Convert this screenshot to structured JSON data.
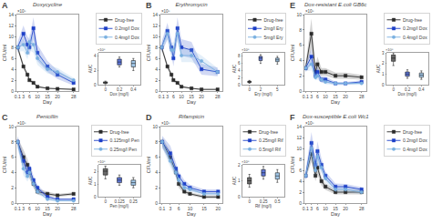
{
  "chart_data": [
    {
      "type": "line",
      "title": "Doxycycline",
      "annotations": [
        "A",
        "×10⁸"
      ],
      "xlabel": "Day",
      "ylabel": "CFU/ml",
      "x": [
        0.1,
        3,
        5,
        6,
        8,
        10,
        15,
        20,
        28
      ],
      "xlim": [
        -0.5,
        30.4
      ],
      "xticks": [
        0.1,
        3,
        6,
        10,
        15,
        20,
        28
      ],
      "ylim": [
        0,
        14
      ],
      "yticks": [
        0,
        2,
        4,
        6,
        8,
        10,
        12,
        14
      ],
      "grid": false,
      "legend": "upper right",
      "series": [
        {
          "name": "Drug-free",
          "color": "#2a2a2a",
          "marker": "square",
          "values": [
            8.0,
            4.5,
            3.0,
            2.0,
            1.5,
            0.8,
            0.5,
            0.4,
            0.3
          ],
          "error": [
            0.5,
            0.5,
            0.4,
            0.3,
            0.2,
            0.2,
            0.1,
            0.1,
            0.1
          ]
        },
        {
          "name": "0.2mg/l Dox",
          "color": "#1c3fc8",
          "marker": "square",
          "values": [
            8.0,
            10.5,
            8.5,
            8.0,
            11.5,
            7.0,
            4.5,
            3.0,
            1.5
          ],
          "error": [
            1.0,
            1.5,
            1.5,
            1.5,
            2.0,
            1.5,
            1.0,
            0.8,
            0.5
          ]
        },
        {
          "name": "0.4mg/l Dox",
          "color": "#7ab0e0",
          "marker": "circle",
          "values": [
            8.0,
            8.5,
            7.0,
            9.0,
            8.5,
            6.0,
            4.0,
            3.5,
            2.0
          ],
          "error": [
            0.8,
            1.2,
            1.2,
            1.5,
            1.5,
            1.2,
            0.8,
            0.7,
            0.4
          ]
        }
      ],
      "inset": {
        "type": "box",
        "xlabel": "Dox (mg/l)",
        "ylabel": "AUC",
        "annotations": [
          "×10⁸"
        ],
        "xlim": [
          -0.1,
          0.5
        ],
        "xticks": [
          0,
          0.2,
          0.4
        ],
        "ylim": [
          0,
          4.5
        ],
        "yticks": [
          0,
          2,
          4
        ],
        "grid": false,
        "boxes": [
          {
            "x": 0,
            "median": 0.3,
            "q1": 0.2,
            "q3": 0.4,
            "lower": 0.1,
            "upper": 0.5,
            "color": "#2a2a2a"
          },
          {
            "x": 0.2,
            "median": 3.2,
            "q1": 2.8,
            "q3": 3.6,
            "lower": 2.5,
            "upper": 3.9,
            "color": "#1c3fc8"
          },
          {
            "x": 0.4,
            "median": 3.0,
            "q1": 2.5,
            "q3": 3.4,
            "lower": 2.0,
            "upper": 3.7,
            "color": "#7ab0e0"
          }
        ]
      }
    },
    {
      "type": "line",
      "title": "Erythromycin",
      "annotations": [
        "B",
        "×10⁸"
      ],
      "xlabel": "Day",
      "ylabel": "CFU/ml",
      "x": [
        0.1,
        3,
        5,
        6,
        8,
        10,
        15,
        20,
        28
      ],
      "xlim": [
        -0.5,
        30.4
      ],
      "xticks": [
        0.1,
        3,
        6,
        10,
        15,
        20,
        28
      ],
      "ylim": [
        0,
        14
      ],
      "yticks": [
        0,
        2,
        4,
        6,
        8,
        10,
        12,
        14
      ],
      "grid": false,
      "legend": "upper right",
      "series": [
        {
          "name": "Drug-free",
          "color": "#2a2a2a",
          "marker": "square",
          "values": [
            8.0,
            4.5,
            3.0,
            2.0,
            1.5,
            0.8,
            0.5,
            0.3,
            0.3
          ],
          "error": [
            0.5,
            0.5,
            0.4,
            0.3,
            0.2,
            0.2,
            0.1,
            0.1,
            0.1
          ]
        },
        {
          "name": "2mg/l Ery",
          "color": "#1c3fc8",
          "marker": "square",
          "values": [
            8.0,
            11.0,
            8.0,
            6.0,
            11.5,
            8.0,
            7.5,
            4.0,
            3.5
          ],
          "error": [
            1.0,
            1.5,
            1.5,
            1.5,
            2.0,
            1.5,
            1.5,
            1.0,
            0.8
          ]
        },
        {
          "name": "5mg/l Ery",
          "color": "#7ab0e0",
          "marker": "circle",
          "values": [
            8.0,
            10.5,
            7.5,
            7.5,
            10.5,
            6.5,
            6.5,
            5.5,
            3.5
          ],
          "error": [
            0.8,
            1.2,
            1.2,
            1.5,
            1.5,
            1.2,
            1.2,
            1.0,
            0.7
          ]
        }
      ],
      "inset": {
        "type": "box",
        "xlabel": "Ery (mg/l)",
        "ylabel": "AUC",
        "annotations": [
          "×10⁸"
        ],
        "xlim": [
          -1.25,
          6.25
        ],
        "xticks": [
          0,
          2,
          5
        ],
        "ylim": [
          0,
          9
        ],
        "yticks": [
          0,
          2,
          4,
          6,
          8
        ],
        "grid": false,
        "boxes": [
          {
            "x": 0,
            "median": 0.8,
            "q1": 0.6,
            "q3": 1.0,
            "lower": 0.4,
            "upper": 1.2,
            "color": "#2a2a2a"
          },
          {
            "x": 2,
            "median": 7.5,
            "q1": 6.8,
            "q3": 8.0,
            "lower": 6.0,
            "upper": 8.5,
            "color": "#1c3fc8"
          },
          {
            "x": 5,
            "median": 7.0,
            "q1": 6.5,
            "q3": 7.5,
            "lower": 5.8,
            "upper": 8.0,
            "color": "#7ab0e0"
          }
        ]
      }
    },
    {
      "type": "line",
      "title": "Dox-resistant E.coli GB6c",
      "annotations": [
        "E",
        "×10⁸"
      ],
      "xlabel": "Day",
      "ylabel": "CFU/ml",
      "x": [
        0.1,
        3,
        5,
        6,
        8,
        10,
        15,
        20,
        28
      ],
      "xlim": [
        -0.5,
        30.4
      ],
      "xticks": [
        0.1,
        3,
        6,
        10,
        15,
        20,
        28
      ],
      "ylim": [
        0,
        10
      ],
      "yticks": [
        0,
        2,
        4,
        6,
        8,
        10
      ],
      "grid": false,
      "legend": "upper right",
      "series": [
        {
          "name": "Drug-free",
          "color": "#2a2a2a",
          "marker": "square",
          "values": [
            3.0,
            7.5,
            2.5,
            3.5,
            2.5,
            2.5,
            2.0,
            2.0,
            1.8
          ],
          "error": [
            0.5,
            2.0,
            0.8,
            1.0,
            0.5,
            0.5,
            0.4,
            0.4,
            0.3
          ]
        },
        {
          "name": "0.2mg/l Dox",
          "color": "#1c3fc8",
          "marker": "square",
          "values": [
            3.0,
            4.5,
            2.0,
            2.5,
            1.5,
            1.5,
            1.0,
            1.0,
            1.2
          ],
          "error": [
            0.5,
            1.0,
            0.5,
            0.7,
            0.4,
            0.4,
            0.2,
            0.2,
            0.2
          ]
        },
        {
          "name": "0.4mg/l Dox",
          "color": "#7ab0e0",
          "marker": "circle",
          "values": [
            3.0,
            3.5,
            1.8,
            2.0,
            1.5,
            1.2,
            1.0,
            1.0,
            1.0
          ],
          "error": [
            0.4,
            0.8,
            0.4,
            0.5,
            0.3,
            0.3,
            0.2,
            0.2,
            0.2
          ]
        }
      ],
      "inset": {
        "type": "box",
        "xlabel": "Dox (mg/l)",
        "ylabel": "AUC",
        "annotations": [
          "×10⁸"
        ],
        "xlim": [
          -0.1,
          0.5
        ],
        "xticks": [
          0,
          0.2,
          0.4
        ],
        "ylim": [
          0,
          3
        ],
        "yticks": [
          0,
          1,
          2,
          3
        ],
        "grid": false,
        "boxes": [
          {
            "x": 0,
            "median": 2.5,
            "q1": 2.2,
            "q3": 2.8,
            "lower": 1.8,
            "upper": 3.0,
            "color": "#2a2a2a"
          },
          {
            "x": 0.2,
            "median": 1.0,
            "q1": 0.8,
            "q3": 1.2,
            "lower": 0.6,
            "upper": 1.4,
            "color": "#1c3fc8"
          },
          {
            "x": 0.4,
            "median": 0.9,
            "q1": 0.7,
            "q3": 1.1,
            "lower": 0.5,
            "upper": 1.3,
            "color": "#7ab0e0"
          }
        ]
      }
    },
    {
      "type": "line",
      "title": "Penicillin",
      "annotations": [
        "C",
        "×10⁸"
      ],
      "xlabel": "Day",
      "ylabel": "CFU/ml",
      "x": [
        0.1,
        3,
        5,
        6,
        8,
        10,
        15,
        20,
        28
      ],
      "xlim": [
        -0.5,
        30.4
      ],
      "xticks": [
        0.1,
        3,
        6,
        10,
        15,
        20,
        28
      ],
      "ylim": [
        0,
        10
      ],
      "yticks": [
        0,
        2,
        4,
        6,
        8,
        10
      ],
      "grid": false,
      "legend": "upper right",
      "series": [
        {
          "name": "Drug-free",
          "color": "#2a2a2a",
          "marker": "square",
          "values": [
            8.0,
            6.0,
            5.0,
            4.0,
            2.5,
            1.5,
            1.2,
            1.0,
            1.2
          ],
          "error": [
            0.5,
            1.0,
            0.8,
            0.8,
            0.5,
            0.4,
            0.3,
            0.2,
            0.2
          ]
        },
        {
          "name": "0.125mg/l Pen",
          "color": "#1c3fc8",
          "marker": "square",
          "values": [
            8.0,
            5.5,
            4.0,
            4.5,
            3.0,
            2.0,
            0.8,
            0.5,
            0.5
          ],
          "error": [
            0.8,
            1.0,
            0.8,
            0.8,
            0.6,
            0.4,
            0.2,
            0.1,
            0.1
          ]
        },
        {
          "name": "0.25mg/l Pen",
          "color": "#7ab0e0",
          "marker": "circle",
          "values": [
            8.0,
            4.5,
            3.5,
            4.0,
            2.5,
            1.5,
            0.5,
            0.3,
            0.3
          ],
          "error": [
            0.7,
            0.9,
            0.7,
            0.7,
            0.5,
            0.3,
            0.1,
            0.1,
            0.1
          ]
        }
      ],
      "inset": {
        "type": "box",
        "xlabel": "Pen (mg/l)",
        "ylabel": "AUC",
        "annotations": [
          "×10⁸"
        ],
        "xlim": [
          -0.0625,
          0.3125
        ],
        "xticks": [
          0,
          0.125,
          0.25
        ],
        "ylim": [
          0,
          2.5
        ],
        "yticks": [
          0,
          1,
          2
        ],
        "grid": false,
        "boxes": [
          {
            "x": 0,
            "median": 2.0,
            "q1": 1.7,
            "q3": 2.2,
            "lower": 1.4,
            "upper": 2.4,
            "color": "#2a2a2a"
          },
          {
            "x": 0.125,
            "median": 1.3,
            "q1": 1.1,
            "q3": 1.5,
            "lower": 0.9,
            "upper": 1.7,
            "color": "#1c3fc8"
          },
          {
            "x": 0.25,
            "median": 1.1,
            "q1": 0.9,
            "q3": 1.3,
            "lower": 0.7,
            "upper": 1.5,
            "color": "#7ab0e0"
          }
        ]
      }
    },
    {
      "type": "line",
      "title": "Rifampicin",
      "annotations": [
        "D",
        "×10⁸"
      ],
      "xlabel": "Day",
      "ylabel": "CFU/ml",
      "x": [
        0.1,
        3,
        5,
        6,
        8,
        10,
        15,
        20
      ],
      "xlim": [
        -0.5,
        21.5
      ],
      "xticks": [
        0.1,
        3,
        6,
        10,
        15,
        20
      ],
      "ylim": [
        0,
        10
      ],
      "yticks": [
        0,
        2,
        4,
        6,
        8,
        10
      ],
      "grid": false,
      "legend": "upper right",
      "series": [
        {
          "name": "Drug-free",
          "color": "#2a2a2a",
          "marker": "square",
          "values": [
            8.0,
            6.0,
            4.0,
            2.5,
            1.5,
            1.2,
            0.8,
            0.8
          ],
          "error": [
            0.5,
            0.8,
            0.6,
            0.5,
            0.3,
            0.2,
            0.2,
            0.2
          ]
        },
        {
          "name": "0.25mg/l Rif",
          "color": "#1c3fc8",
          "marker": "square",
          "values": [
            8.0,
            6.5,
            4.5,
            3.5,
            2.5,
            2.0,
            1.5,
            1.5
          ],
          "error": [
            0.8,
            1.0,
            0.8,
            0.6,
            0.5,
            0.4,
            0.3,
            0.3
          ]
        },
        {
          "name": "0.5mg/l Rif",
          "color": "#7ab0e0",
          "marker": "circle",
          "values": [
            8.0,
            5.5,
            4.0,
            3.0,
            2.0,
            1.8,
            1.2,
            1.2
          ],
          "error": [
            0.7,
            0.8,
            0.7,
            0.5,
            0.4,
            0.3,
            0.2,
            0.2
          ]
        }
      ],
      "inset": {
        "type": "box",
        "xlabel": "Rif (mg/l)",
        "ylabel": "AUC",
        "annotations": [
          "×10⁸"
        ],
        "xlim": [
          -0.125,
          0.625
        ],
        "xticks": [
          0,
          0.25,
          0.5
        ],
        "ylim": [
          0,
          2.0
        ],
        "yticks": [
          0,
          1,
          2
        ],
        "grid": false,
        "boxes": [
          {
            "x": 0,
            "median": 1.0,
            "q1": 0.8,
            "q3": 1.2,
            "lower": 0.6,
            "upper": 1.4,
            "color": "#2a2a2a"
          },
          {
            "x": 0.25,
            "median": 1.5,
            "q1": 1.3,
            "q3": 1.7,
            "lower": 1.1,
            "upper": 1.9,
            "color": "#1c3fc8"
          },
          {
            "x": 0.5,
            "median": 1.3,
            "q1": 1.1,
            "q3": 1.5,
            "lower": 0.9,
            "upper": 1.7,
            "color": "#7ab0e0"
          }
        ]
      }
    },
    {
      "type": "line",
      "title": "Dox-susceptible E.coli Wc1",
      "annotations": [
        "F",
        "×10⁸"
      ],
      "xlabel": "Day",
      "ylabel": "CFU/ml",
      "x": [
        0.1,
        3,
        5,
        6,
        8,
        10,
        15,
        20,
        28
      ],
      "xlim": [
        -0.5,
        30.4
      ],
      "xticks": [
        0.1,
        3,
        6,
        10,
        15,
        20,
        28
      ],
      "ylim": [
        0,
        14
      ],
      "yticks": [
        0,
        2,
        4,
        6,
        8,
        10,
        12,
        14
      ],
      "grid": false,
      "legend": "upper right",
      "series": [
        {
          "name": "Drug-free",
          "color": "#2a2a2a",
          "marker": "square",
          "values": [
            5.0,
            9.0,
            5.0,
            6.5,
            4.0,
            3.0,
            2.0,
            2.0,
            2.0
          ],
          "error": [
            0.5,
            1.5,
            1.0,
            1.2,
            0.8,
            0.6,
            0.4,
            0.4,
            0.4
          ]
        },
        {
          "name": "0.2mg/l Dox",
          "color": "#1c3fc8",
          "marker": "square",
          "values": [
            5.0,
            11.0,
            7.0,
            9.5,
            7.0,
            5.0,
            3.0,
            3.0,
            2.5
          ],
          "error": [
            1.0,
            2.0,
            1.5,
            1.8,
            1.2,
            0.8,
            0.6,
            0.5,
            0.4
          ]
        },
        {
          "name": "0.4mg/l Dox",
          "color": "#7ab0e0",
          "marker": "circle",
          "values": [
            5.0,
            10.0,
            6.0,
            8.5,
            6.5,
            4.5,
            2.5,
            2.5,
            2.0
          ],
          "error": [
            0.8,
            1.8,
            1.2,
            1.5,
            1.0,
            0.7,
            0.5,
            0.4,
            0.4
          ]
        }
      ]
    }
  ]
}
